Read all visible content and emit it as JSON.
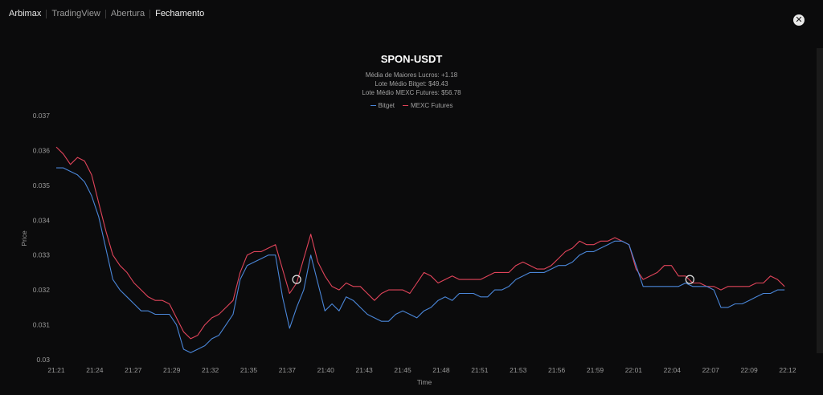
{
  "nav": {
    "items": [
      {
        "label": "Arbimax",
        "active": false,
        "brand": true
      },
      {
        "label": "TradingView",
        "active": false,
        "brand": false
      },
      {
        "label": "Abertura",
        "active": false,
        "brand": false
      },
      {
        "label": "Fechamento",
        "active": true,
        "brand": false
      }
    ]
  },
  "close_icon": "close-icon",
  "colors": {
    "bitget": "#4a86d8",
    "mexc": "#e0445a",
    "background": "#0b0b0c"
  },
  "chart_data": {
    "type": "line",
    "title": "SPON-USDT",
    "subtitles": [
      "Média de Maiores Lucros: +1.18",
      "Lote Médio Bitget: $49.43",
      "Lote Médio MEXC Futures: $56.78"
    ],
    "xlabel": "Time",
    "ylabel": "Price",
    "ylim": [
      0.03,
      0.037
    ],
    "yticks": [
      "0.03",
      "0.031",
      "0.032",
      "0.033",
      "0.034",
      "0.035",
      "0.036",
      "0.037"
    ],
    "xticks": [
      "21:21",
      "21:24",
      "21:27",
      "21:29",
      "21:32",
      "21:35",
      "21:37",
      "21:40",
      "21:43",
      "21:45",
      "21:48",
      "21:51",
      "21:53",
      "21:56",
      "21:59",
      "22:01",
      "22:04",
      "22:07",
      "22:09",
      "22:12"
    ],
    "x_minutes_range": [
      0,
      52
    ],
    "legend": "top-center",
    "markers": [
      {
        "x_min": 17.0,
        "y": 0.0323
      },
      {
        "x_min": 44.8,
        "y": 0.0323
      }
    ],
    "series": [
      {
        "name": "Bitget",
        "color": "#4a86d8",
        "points": [
          [
            0,
            0.0355
          ],
          [
            0.5,
            0.0355
          ],
          [
            1,
            0.0354
          ],
          [
            1.5,
            0.0353
          ],
          [
            2,
            0.0351
          ],
          [
            2.5,
            0.0347
          ],
          [
            3,
            0.0341
          ],
          [
            3.5,
            0.0332
          ],
          [
            4,
            0.0323
          ],
          [
            4.5,
            0.032
          ],
          [
            5,
            0.0318
          ],
          [
            5.5,
            0.0316
          ],
          [
            6,
            0.0314
          ],
          [
            6.5,
            0.0314
          ],
          [
            7,
            0.0313
          ],
          [
            7.5,
            0.0313
          ],
          [
            8,
            0.0313
          ],
          [
            8.5,
            0.031
          ],
          [
            9,
            0.0303
          ],
          [
            9.5,
            0.0302
          ],
          [
            10,
            0.0303
          ],
          [
            10.5,
            0.0304
          ],
          [
            11,
            0.0306
          ],
          [
            11.5,
            0.0307
          ],
          [
            12,
            0.031
          ],
          [
            12.5,
            0.0313
          ],
          [
            13,
            0.0323
          ],
          [
            13.5,
            0.0327
          ],
          [
            14,
            0.0328
          ],
          [
            14.5,
            0.0329
          ],
          [
            15,
            0.033
          ],
          [
            15.5,
            0.033
          ],
          [
            16,
            0.0318
          ],
          [
            16.5,
            0.0309
          ],
          [
            17,
            0.0315
          ],
          [
            17.5,
            0.032
          ],
          [
            18,
            0.033
          ],
          [
            18.5,
            0.0322
          ],
          [
            19,
            0.0314
          ],
          [
            19.5,
            0.0316
          ],
          [
            20,
            0.0314
          ],
          [
            20.5,
            0.0318
          ],
          [
            21,
            0.0317
          ],
          [
            21.5,
            0.0315
          ],
          [
            22,
            0.0313
          ],
          [
            22.5,
            0.0312
          ],
          [
            23,
            0.0311
          ],
          [
            23.5,
            0.0311
          ],
          [
            24,
            0.0313
          ],
          [
            24.5,
            0.0314
          ],
          [
            25,
            0.0313
          ],
          [
            25.5,
            0.0312
          ],
          [
            26,
            0.0314
          ],
          [
            26.5,
            0.0315
          ],
          [
            27,
            0.0317
          ],
          [
            27.5,
            0.0318
          ],
          [
            28,
            0.0317
          ],
          [
            28.5,
            0.0319
          ],
          [
            29,
            0.0319
          ],
          [
            29.5,
            0.0319
          ],
          [
            30,
            0.0318
          ],
          [
            30.5,
            0.0318
          ],
          [
            31,
            0.032
          ],
          [
            31.5,
            0.032
          ],
          [
            32,
            0.0321
          ],
          [
            32.5,
            0.0323
          ],
          [
            33,
            0.0324
          ],
          [
            33.5,
            0.0325
          ],
          [
            34,
            0.0325
          ],
          [
            34.5,
            0.0325
          ],
          [
            35,
            0.0326
          ],
          [
            35.5,
            0.0327
          ],
          [
            36,
            0.0327
          ],
          [
            36.5,
            0.0328
          ],
          [
            37,
            0.033
          ],
          [
            37.5,
            0.0331
          ],
          [
            38,
            0.0331
          ],
          [
            38.5,
            0.0332
          ],
          [
            39,
            0.0333
          ],
          [
            39.5,
            0.0334
          ],
          [
            40,
            0.0334
          ],
          [
            40.5,
            0.0333
          ],
          [
            41,
            0.0327
          ],
          [
            41.5,
            0.0321
          ],
          [
            42,
            0.0321
          ],
          [
            42.5,
            0.0321
          ],
          [
            43,
            0.0321
          ],
          [
            43.5,
            0.0321
          ],
          [
            44,
            0.0321
          ],
          [
            44.5,
            0.0322
          ],
          [
            45,
            0.0321
          ],
          [
            45.5,
            0.0321
          ],
          [
            46,
            0.0321
          ],
          [
            46.5,
            0.032
          ],
          [
            47,
            0.0315
          ],
          [
            47.5,
            0.0315
          ],
          [
            48,
            0.0316
          ],
          [
            48.5,
            0.0316
          ],
          [
            49,
            0.0317
          ],
          [
            49.5,
            0.0318
          ],
          [
            50,
            0.0319
          ],
          [
            50.5,
            0.0319
          ],
          [
            51,
            0.032
          ],
          [
            51.5,
            0.032
          ]
        ]
      },
      {
        "name": "MEXC Futures",
        "color": "#e0445a",
        "points": [
          [
            0,
            0.0361
          ],
          [
            0.5,
            0.0359
          ],
          [
            1,
            0.0356
          ],
          [
            1.5,
            0.0358
          ],
          [
            2,
            0.0357
          ],
          [
            2.5,
            0.0353
          ],
          [
            3,
            0.0345
          ],
          [
            3.5,
            0.0337
          ],
          [
            4,
            0.033
          ],
          [
            4.5,
            0.0327
          ],
          [
            5,
            0.0325
          ],
          [
            5.5,
            0.0322
          ],
          [
            6,
            0.032
          ],
          [
            6.5,
            0.0318
          ],
          [
            7,
            0.0317
          ],
          [
            7.5,
            0.0317
          ],
          [
            8,
            0.0316
          ],
          [
            8.5,
            0.0312
          ],
          [
            9,
            0.0308
          ],
          [
            9.5,
            0.0306
          ],
          [
            10,
            0.0307
          ],
          [
            10.5,
            0.031
          ],
          [
            11,
            0.0312
          ],
          [
            11.5,
            0.0313
          ],
          [
            12,
            0.0315
          ],
          [
            12.5,
            0.0317
          ],
          [
            13,
            0.0325
          ],
          [
            13.5,
            0.033
          ],
          [
            14,
            0.0331
          ],
          [
            14.5,
            0.0331
          ],
          [
            15,
            0.0332
          ],
          [
            15.5,
            0.0333
          ],
          [
            16,
            0.0326
          ],
          [
            16.5,
            0.0319
          ],
          [
            17,
            0.0322
          ],
          [
            17.5,
            0.0329
          ],
          [
            18,
            0.0336
          ],
          [
            18.5,
            0.0328
          ],
          [
            19,
            0.0324
          ],
          [
            19.5,
            0.0321
          ],
          [
            20,
            0.032
          ],
          [
            20.5,
            0.0322
          ],
          [
            21,
            0.0321
          ],
          [
            21.5,
            0.0321
          ],
          [
            22,
            0.0319
          ],
          [
            22.5,
            0.0317
          ],
          [
            23,
            0.0319
          ],
          [
            23.5,
            0.032
          ],
          [
            24,
            0.032
          ],
          [
            24.5,
            0.032
          ],
          [
            25,
            0.0319
          ],
          [
            25.5,
            0.0322
          ],
          [
            26,
            0.0325
          ],
          [
            26.5,
            0.0324
          ],
          [
            27,
            0.0322
          ],
          [
            27.5,
            0.0323
          ],
          [
            28,
            0.0324
          ],
          [
            28.5,
            0.0323
          ],
          [
            29,
            0.0323
          ],
          [
            29.5,
            0.0323
          ],
          [
            30,
            0.0323
          ],
          [
            30.5,
            0.0324
          ],
          [
            31,
            0.0325
          ],
          [
            31.5,
            0.0325
          ],
          [
            32,
            0.0325
          ],
          [
            32.5,
            0.0327
          ],
          [
            33,
            0.0328
          ],
          [
            33.5,
            0.0327
          ],
          [
            34,
            0.0326
          ],
          [
            34.5,
            0.0326
          ],
          [
            35,
            0.0327
          ],
          [
            35.5,
            0.0329
          ],
          [
            36,
            0.0331
          ],
          [
            36.5,
            0.0332
          ],
          [
            37,
            0.0334
          ],
          [
            37.5,
            0.0333
          ],
          [
            38,
            0.0333
          ],
          [
            38.5,
            0.0334
          ],
          [
            39,
            0.0334
          ],
          [
            39.5,
            0.0335
          ],
          [
            40,
            0.0334
          ],
          [
            40.5,
            0.0333
          ],
          [
            41,
            0.0326
          ],
          [
            41.5,
            0.0323
          ],
          [
            42,
            0.0324
          ],
          [
            42.5,
            0.0325
          ],
          [
            43,
            0.0327
          ],
          [
            43.5,
            0.0327
          ],
          [
            44,
            0.0324
          ],
          [
            44.5,
            0.0324
          ],
          [
            45,
            0.0322
          ],
          [
            45.5,
            0.0322
          ],
          [
            46,
            0.0321
          ],
          [
            46.5,
            0.0321
          ],
          [
            47,
            0.032
          ],
          [
            47.5,
            0.0321
          ],
          [
            48,
            0.0321
          ],
          [
            48.5,
            0.0321
          ],
          [
            49,
            0.0321
          ],
          [
            49.5,
            0.0322
          ],
          [
            50,
            0.0322
          ],
          [
            50.5,
            0.0324
          ],
          [
            51,
            0.0323
          ],
          [
            51.5,
            0.0321
          ]
        ]
      }
    ]
  }
}
